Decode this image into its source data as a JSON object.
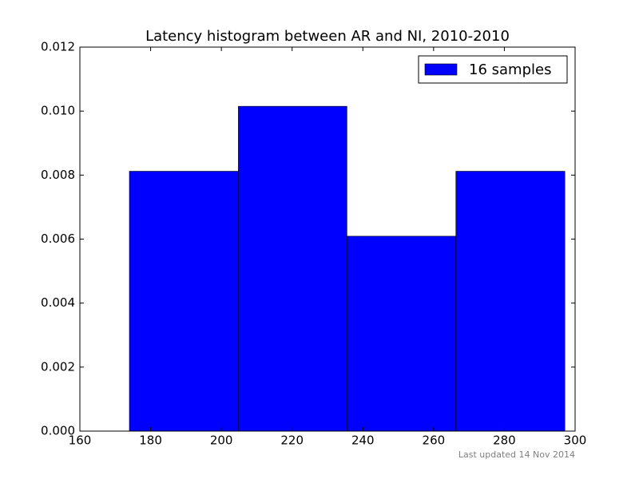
{
  "chart_data": {
    "type": "histogram",
    "title": "Latency histogram between AR and NI, 2010-2010",
    "bins": [
      174,
      204.8,
      235.5,
      266.3,
      297.1
    ],
    "series": [
      {
        "name": "16 samples",
        "color": "#0000ff",
        "values": [
          0.00812,
          0.01015,
          0.00609,
          0.00812
        ]
      }
    ],
    "xlim": [
      160,
      300
    ],
    "xticks": [
      160,
      180,
      200,
      220,
      240,
      260,
      280,
      300
    ],
    "ylim": [
      0,
      0.012
    ],
    "yticks": [
      {
        "value": 0,
        "label": "0.000"
      },
      {
        "value": 0.002,
        "label": "0.002"
      },
      {
        "value": 0.004,
        "label": "0.004"
      },
      {
        "value": 0.006,
        "label": "0.006"
      },
      {
        "value": 0.008,
        "label": "0.008"
      },
      {
        "value": 0.01,
        "label": "0.010"
      },
      {
        "value": 0.012,
        "label": "0.012"
      }
    ],
    "legend": "upper right",
    "annotation": "Last updated 14 Nov 2014"
  }
}
